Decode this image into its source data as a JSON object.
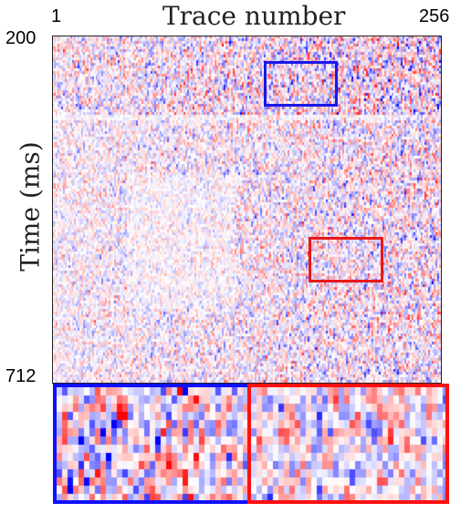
{
  "title": "Trace number",
  "y_label": "Time (ms)",
  "x_ticks": {
    "start": "1",
    "end": "256"
  },
  "y_ticks": {
    "start": "200",
    "end": "712"
  },
  "highlights": {
    "blue": {
      "color": "#1818e8"
    },
    "red": {
      "color": "#e81818"
    }
  },
  "colormap": {
    "negative": "#0000ff",
    "zero": "#ffffff",
    "positive": "#ff0000"
  }
}
